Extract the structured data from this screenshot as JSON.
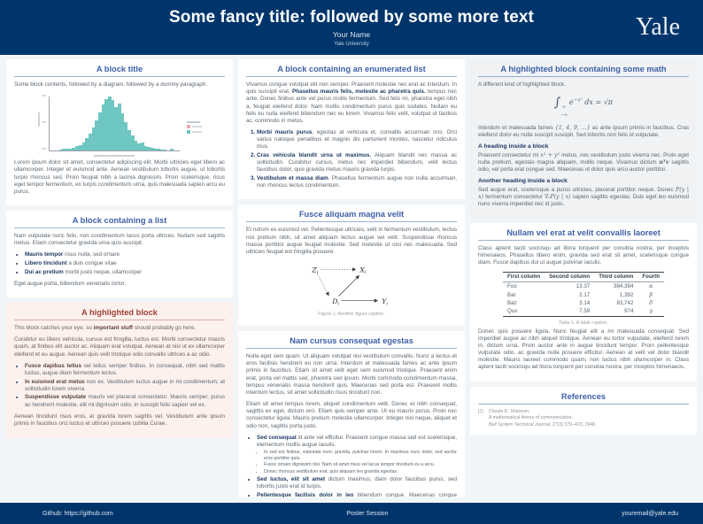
{
  "colors": {
    "yale-blue": "#00356b",
    "title-blue": "#3d5fa8",
    "alert-red": "#9c4036",
    "alert-bg": "#fdf1ee",
    "hist-teal": "#6fc7c1",
    "legend-pink": "#e9a9b5"
  },
  "header": {
    "title": "Some fancy title: followed by some more text",
    "author": "Your Name",
    "institution": "Yale University",
    "logo": "Yale"
  },
  "footer": {
    "left": "Github: https://github.com",
    "center": "Poster Session",
    "right": "youremail@yale.edu"
  },
  "chart_data": {
    "type": "bar",
    "title": "",
    "xlabel": "",
    "ylabel": "",
    "ylim": [
      0,
      100
    ],
    "values": [
      0,
      1,
      2,
      2,
      3,
      5,
      7,
      10,
      15,
      22,
      30,
      42,
      55,
      70,
      84,
      95,
      100,
      93,
      80,
      86,
      68,
      52,
      38,
      27,
      18,
      12,
      15,
      8,
      6,
      4,
      3,
      2,
      1,
      1,
      0,
      2
    ],
    "bar_color": "#6fc7c1",
    "legend_colors": [
      "#e9a9b5",
      "#6fc7c1"
    ]
  },
  "col1": {
    "block1": {
      "title": "A block title",
      "intro": "Some block contents, followed by a diagram, followed by a dummy paragraph.",
      "para": "Lorem ipsum dolor sit amet, consectetur adipiscing elit. Morbi ultricies eget libero ac ullamcorper. Integer et euismod ante. Aenean vestibulum lobortis augue, ut lobortis turpis rhoncus sed. Proin feugiat nibh a lacinia dignissim. Proin scelerisque, risus eget tempor fermentum, ex turpis condimentum urna, quis malesuada sapien arcu eu purus."
    },
    "block2": {
      "title": "A block containing a list",
      "para": "Nam vulputate nunc felis, non condimentum lacus porta ultrices. Nullam sed sagittis metus. Etiam consectetur gravida urna quis suscipit.",
      "bullets": [
        {
          "seg": [
            {
              "x": "Mauris tempor",
              "f": "b"
            },
            {
              "x": " risus nulla, sed ornare",
              "f": ""
            }
          ]
        },
        {
          "seg": [
            {
              "x": "Libero tincidunt",
              "f": "b"
            },
            {
              "x": " a duis congue vitae",
              "f": ""
            }
          ]
        },
        {
          "seg": [
            {
              "x": "Dui ac pretium",
              "f": "b"
            },
            {
              "x": " morbi justo neque, ullamcorper",
              "f": ""
            }
          ]
        }
      ],
      "outro": "Eget augue porta, bibendum venenatis tortor."
    },
    "block3": {
      "title": "A highlighted block",
      "p1": [
        {
          "x": "This block catches your eye, so ",
          "f": ""
        },
        {
          "x": "important stuff",
          "f": "b"
        },
        {
          "x": " should probably go here.",
          "f": ""
        }
      ],
      "p2": "Curabitur eu libero vehicula, cursus est fringilla, luctus est. Morbi consectetur mauris quam, at finibus elit auctor ac. Aliquam erat volutpat. Aenean at nisl ut ex ullamcorper eleifend et eu augue. Aenean quis velit tristique odio convallis ultrices a ac odio.",
      "bullets": [
        {
          "seg": [
            {
              "x": "Fusce dapibus tellus",
              "f": "b"
            },
            {
              "x": " vel tellus semper finibus. In consequat, nibh sed mattis luctus, augue diam fermentum lectus.",
              "f": ""
            }
          ]
        },
        {
          "seg": [
            {
              "x": "In euismod erat metus",
              "f": "b"
            },
            {
              "x": " non ex. Vestibulum luctus augue in mi condimentum, at sollicitudin lorem viverra.",
              "f": ""
            }
          ]
        },
        {
          "seg": [
            {
              "x": "Suspendisse vulputate",
              "f": "b"
            },
            {
              "x": " mauris vel placerat consectetur. Mauris semper, purus ac hendrerit molestie, elit mi dignissim odio, in suscipit felis sapien vel ex.",
              "f": ""
            }
          ]
        }
      ],
      "outro": "Aenean tincidunt risus eros, at gravida lorem sagittis vel. Vestibulum ante ipsum primis in faucibus orci luctus et ultrices posuere cubilia Curae."
    }
  },
  "col2": {
    "block1": {
      "title": "A block containing an enumerated list",
      "para": [
        {
          "x": "Vivamus congue volutpat elit non semper. Praesent molestie nec erat ac interdum. In quis suscipit erat. ",
          "f": ""
        },
        {
          "x": "Phasellus mauris felis, molestie ac pharetra quis.",
          "f": "b"
        },
        {
          "x": " tempus nec ante. Donec finibus ante vel purus mollis fermentum. Sed felis mi, pharetra eget nibh a, feugiat eleifend dolor. Nam mollis condimentum purus quis sodales. Nullam eu felis eu nulla eleifend bibendum nec eu lorem. Vivamus felis velit, volutpat ut facilisis ac, commodo in metus.",
          "f": ""
        }
      ],
      "items": [
        {
          "seg": [
            {
              "x": "Morbi mauris purus",
              "f": "b"
            },
            {
              "x": ", egestas at vehicula et, convallis accumsan orci. Orci varius natoque penatibus et magnis dis parturient montes, nascetur ridiculus mus.",
              "f": ""
            }
          ]
        },
        {
          "seg": [
            {
              "x": "Cras vehicula blandit urna ut maximus.",
              "f": "b"
            },
            {
              "x": " Aliquam blandit nec massa ac sollicitudin. Curabitur cursus, metus nec imperdiet bibendum, velit lectus faucibus dolor, quis gravida metus mauris gravida turpis.",
              "f": ""
            }
          ]
        },
        {
          "seg": [
            {
              "x": "Vestibulum et massa diam",
              "f": "b"
            },
            {
              "x": ". Phasellus fermentum augue non nulla accumsan, non rhoncus lectus condimentum.",
              "f": ""
            }
          ]
        }
      ]
    },
    "block2": {
      "title": "Fusce aliquam magna velit",
      "para": "Et rutrum ex euismod vel. Pellentesque ultricies, velit in fermentum vestibulum, lectus nisi pretium nibh, sit amet aliquam lectus augue vel velit. Suspendisse rhoncus massa porttitor augue feugiat molestie. Sed molestie ut orci nec malesuada. Sed ultricies feugiat est fringilla posuere.",
      "nodes": {
        "z": "Z",
        "x": "X",
        "d": "D",
        "y": "Y",
        "sub": "i"
      },
      "caption": "Figure 1. Another figure caption."
    },
    "block3": {
      "title": "Nam cursus consequat egestas",
      "p1": "Nulla eget sem quam. Ut aliquam volutpat nisi vestibulum convallis. Nunc a lectus et eros facilisis hendrerit eu non urna. Interdum et malesuada fames ac ante ipsum primis in faucibus. Etiam sit amet velit eget sem euismod tristique. Praesent enim erat, porta vel mattis sed, pharetra sed ipsum. Morbi commodo condimentum massa, tempus venenatis massa hendrerit quis. Maecenas sed porta est. Praesent mollis interdum lectus, sit amet sollicitudin risus tincidunt non.",
      "p2": "Etiam sit amet tempus lorem, aliquet condimentum velit. Donec et nibh consequat, sagittis ex eget, dictum orci. Etiam quis semper ante. Ut eu mauris purus. Proin nec consectetur ligula. Mauris pretium molestie ullamcorper. Integer nisi neque, aliquet et odio non, sagittis porta justo.",
      "bullets": [
        {
          "seg": [
            {
              "x": "Sed consequat",
              "f": "b"
            },
            {
              "x": " id ante vel efficitur. Praesent congue massa sed est scelerisque, elementum mollis augue iaculis.",
              "f": ""
            }
          ],
          "sub": [
            [
              {
                "x": "In sed est finibus, vulputate nunc gravida, pulvinar lorem. In maximus nunc dolor, sed auctor eros porttitor quis.",
                "f": ""
              }
            ],
            [
              {
                "x": "Fusce ornare dignissim nisi. Nam sit amet risus vel lacus tempor tincidunt eu a arcu.",
                "f": ""
              }
            ],
            [
              {
                "x": "Donec rhoncus vestibulum erat, quis aliquam leo gravida egestas.",
                "f": ""
              }
            ]
          ]
        },
        {
          "seg": [
            {
              "x": "Sed luctus, elit sit amet",
              "f": "b"
            },
            {
              "x": " dictum maximus, diam dolor faucibus purus, sed lobortis justo erat id turpis.",
              "f": ""
            }
          ]
        },
        {
          "seg": [
            {
              "x": "Pellentesque facilisis dolor in leo",
              "f": "b"
            },
            {
              "x": " bibendum congue. Maecenas congue finibus justo, vitae eleifend urna facilisis at.",
              "f": ""
            }
          ]
        }
      ]
    }
  },
  "col3": {
    "block1": {
      "title": "A highlighted block containing some math",
      "p1": "A different kind of highlighted block.",
      "eq": {
        "int": "∫",
        "up": "∞",
        "lo": "−∞",
        "pre": "e",
        "pow": "−x²",
        "post": " dx = ",
        "rhs": "√π"
      },
      "p2": [
        {
          "x": "Interdum et malesuada fames ",
          "f": ""
        },
        {
          "x": "{1, 4, 9, …}",
          "f": "m"
        },
        {
          "x": " ac ante ipsum primis in faucibus. Cras eleifend dolor eu nulla suscipit suscipit. Sed lobortis non felis id vulputate.",
          "f": ""
        }
      ],
      "h1": "A heading inside a block",
      "p3": [
        {
          "x": "Praesent consectetur mi ",
          "f": ""
        },
        {
          "x": "x² + y²",
          "f": "m"
        },
        {
          "x": " metus, nec vestibulum justo viverra nec. Proin eget nulla pretium, egestas magna aliquam, mollis neque. Vivamus dictum ",
          "f": ""
        },
        {
          "x": "uᵀv",
          "f": "bm"
        },
        {
          "x": " sagittis odio, vel porta erat congue sed. Maecenas ut dolor quis arcu auctor porttitor.",
          "f": ""
        }
      ],
      "h2": "Another heading inside a block",
      "p4": [
        {
          "x": "Sed augue erat, scelerisque a purus ultricies, placerat porttitor neque. Donec ",
          "f": ""
        },
        {
          "x": "P(y | x)",
          "f": "m"
        },
        {
          "x": " fermentum consectetur ",
          "f": ""
        },
        {
          "x": "∇ₓP(y | x)",
          "f": "m"
        },
        {
          "x": " sapien sagittis egestas. Duis eget leo euismod nunc viverra imperdiet nec id justo.",
          "f": ""
        }
      ]
    },
    "block2": {
      "title": "Nullam vel erat at velit convallis laoreet",
      "p1": "Class aptent taciti sociosqu ad litora torquent per conubia nostra, per inceptos himenaeos. Phasellus libero enim, gravida sed erat sit amet, scelerisque congue diam. Fusce dapibus dui ut augue pulvinar iaculis.",
      "table": {
        "headers": [
          "First column",
          "Second column",
          "Third column",
          "Fourth"
        ],
        "rows": [
          [
            "Foo",
            "13.37",
            "384,394",
            "α"
          ],
          [
            "Bar",
            "2.17",
            "1,392",
            "β"
          ],
          [
            "Baz",
            "3.14",
            "83,742",
            "δ"
          ],
          [
            "Qux",
            "7.59",
            "974",
            "γ"
          ]
        ]
      },
      "caption": "Table 1. A table caption.",
      "p2": "Donec quis posuere ligula. Nunc feugiat elit a mi malesuada consequat. Sed imperdiet augue ac nibh aliquet tristique. Aenean eu tortor vulputate, eleifend lorem in, dictum urna. Proin auctor ante in augue tincidunt tempor. Proin pellentesque vulputate odio, ac gravida nulla posuere efficitur. Aenean at velit vel dolor blandit molestie. Mauris laoreet commodo quam, non luctus nibh ullamcorper in. Class aptent taciti sociosqu ad litora torquent per conubia nostra, per inceptos himenaeos."
    },
    "references": {
      "title": "References",
      "entry_num": "[1]",
      "line1": [
        {
          "x": "Claude E. Shannon.",
          "f": ""
        }
      ],
      "line2": [
        {
          "x": "A mathematical theory of communication.",
          "f": ""
        }
      ],
      "line3": [
        {
          "x": "Bell System Technical Journal",
          "f": "i"
        },
        {
          "x": ", 27(3):379–423, 1948.",
          "f": ""
        }
      ]
    }
  }
}
